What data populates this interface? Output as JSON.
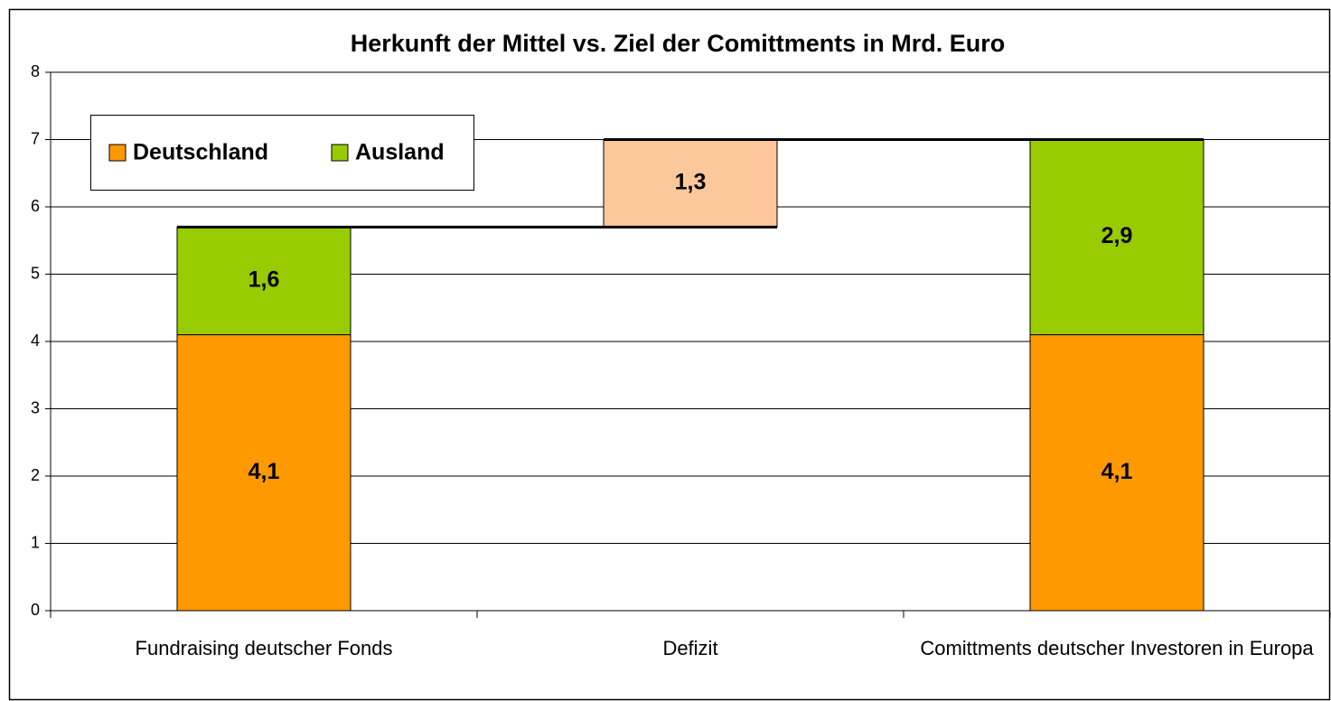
{
  "chart_data": {
    "type": "waterfall-stacked",
    "title": "Herkunft der Mittel vs. Ziel der Comittments in Mrd. Euro",
    "categories": [
      "Fundraising deutscher Fonds",
      "Defizit",
      "Comittments deutscher Investoren in Europa"
    ],
    "series": [
      {
        "name": "Deutschland",
        "color": "#ff9900",
        "values": [
          4.1,
          null,
          4.1
        ],
        "value_labels": [
          "4,1",
          null,
          "4,1"
        ]
      },
      {
        "name": "Ausland",
        "color": "#99cc00",
        "values": [
          1.6,
          null,
          2.9
        ],
        "value_labels": [
          "1,6",
          null,
          "2,9"
        ]
      }
    ],
    "deficit": {
      "value": 1.3,
      "label": "1,3",
      "color": "#fcc89b"
    },
    "ylim": [
      0,
      8
    ],
    "yticks": [
      0,
      1,
      2,
      3,
      4,
      5,
      6,
      7,
      8
    ],
    "grid": true,
    "legend": "top-left"
  }
}
